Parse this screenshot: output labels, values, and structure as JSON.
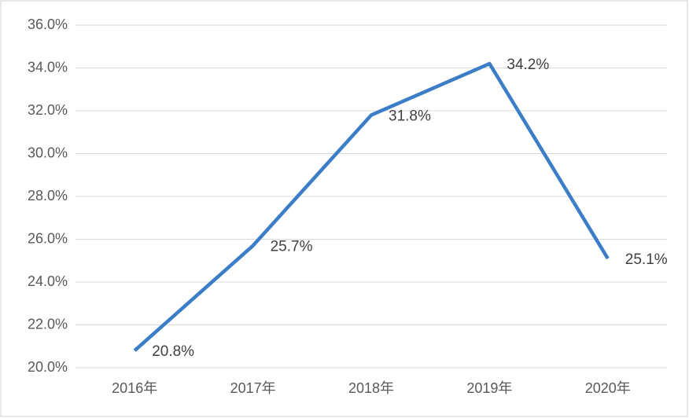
{
  "chart_data": {
    "type": "line",
    "categories": [
      "2016年",
      "2017年",
      "2018年",
      "2019年",
      "2020年"
    ],
    "series": [
      {
        "color": "#3b7dc6",
        "values": [
          20.8,
          25.7,
          31.8,
          34.2,
          25.1
        ],
        "value_labels": [
          "20.8%",
          "25.7%",
          "31.8%",
          "34.2%",
          "25.1%"
        ]
      }
    ],
    "ylim": [
      20,
      36
    ],
    "yticks": [
      {
        "value": 20,
        "label": "20.0%"
      },
      {
        "value": 22,
        "label": "22.0%"
      },
      {
        "value": 24,
        "label": "24.0%"
      },
      {
        "value": 26,
        "label": "26.0%"
      },
      {
        "value": 28,
        "label": "28.0%"
      },
      {
        "value": 30,
        "label": "30.0%"
      },
      {
        "value": 32,
        "label": "32.0%"
      },
      {
        "value": 34,
        "label": "34.0%"
      },
      {
        "value": 36,
        "label": "36.0%"
      }
    ],
    "grid": true
  }
}
